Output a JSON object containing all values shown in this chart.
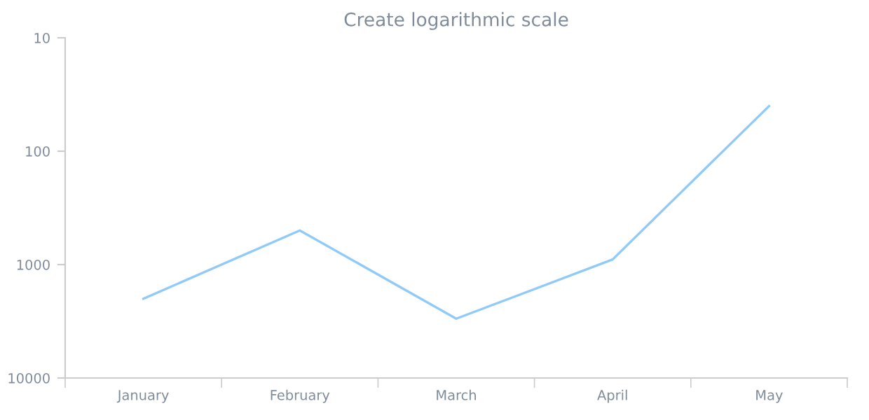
{
  "chart_data": {
    "type": "line",
    "title": "Create logarithmic scale",
    "categories": [
      "January",
      "February",
      "March",
      "April",
      "May"
    ],
    "series": [
      {
        "color": "#90caf9",
        "values": [
          2000,
          500,
          3000,
          900,
          40
        ]
      }
    ],
    "log": "y",
    "ylim": [
      10000,
      10
    ],
    "yticks": [
      10,
      100,
      1000,
      10000
    ],
    "grid": false,
    "legend": false,
    "marker": "none",
    "line_style": "solid"
  }
}
